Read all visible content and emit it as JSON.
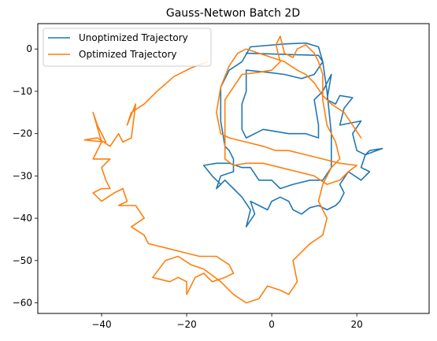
{
  "chart_data": {
    "type": "line",
    "title": "Gauss-Netwon Batch 2D",
    "xlabel": "",
    "ylabel": "",
    "xlim": [
      -55,
      37
    ],
    "ylim": [
      -62.5,
      6
    ],
    "xticks": [
      -40,
      -20,
      0,
      20
    ],
    "yticks": [
      0,
      -10,
      -20,
      -30,
      -40,
      -50,
      -60
    ],
    "xtick_labels": [
      "−40",
      "−20",
      "0",
      "20"
    ],
    "ytick_labels": [
      "0",
      "−10",
      "−20",
      "−30",
      "−40",
      "−50",
      "−60"
    ],
    "grid": false,
    "legend_position": "top-left",
    "series": [
      {
        "name": "Unoptimized Trajectory",
        "color": "#1f77b4",
        "points": [
          [
            -6,
            -1
          ],
          [
            11,
            -1.5
          ],
          [
            12,
            -3
          ],
          [
            10,
            -6
          ],
          [
            7,
            -7
          ],
          [
            3,
            -6
          ],
          [
            -1,
            -5.5
          ],
          [
            -6,
            -5
          ],
          [
            -6,
            -10
          ],
          [
            -7,
            -13
          ],
          [
            -7,
            -19
          ],
          [
            -6,
            -21
          ],
          [
            -2,
            -19
          ],
          [
            4,
            -20
          ],
          [
            8,
            -20
          ],
          [
            11,
            -21
          ],
          [
            11,
            -18
          ],
          [
            10,
            -12
          ],
          [
            12,
            -10
          ],
          [
            13,
            -8
          ],
          [
            14,
            -6
          ],
          [
            13,
            -12
          ],
          [
            15,
            -13
          ],
          [
            16,
            -11
          ],
          [
            19,
            -11.5
          ],
          [
            17,
            -14
          ],
          [
            16,
            -18
          ],
          [
            21,
            -17
          ],
          [
            19,
            -20
          ],
          [
            20,
            -24
          ],
          [
            22,
            -25
          ],
          [
            23,
            -24
          ],
          [
            26,
            -23.5
          ],
          [
            22,
            -25
          ],
          [
            21,
            -28
          ],
          [
            23,
            -29
          ],
          [
            21,
            -31
          ],
          [
            18,
            -29
          ],
          [
            16,
            -32
          ],
          [
            17,
            -34
          ],
          [
            16,
            -36
          ],
          [
            15,
            -37
          ],
          [
            13,
            -38
          ],
          [
            11,
            -37
          ],
          [
            9,
            -37.5
          ],
          [
            7,
            -39
          ],
          [
            5,
            -38
          ],
          [
            4,
            -36
          ],
          [
            2,
            -35
          ],
          [
            0,
            -36
          ],
          [
            -1,
            -38
          ],
          [
            -3,
            -37
          ],
          [
            -5,
            -36
          ],
          [
            -4,
            -39
          ],
          [
            -6,
            -42
          ],
          [
            -5,
            -38
          ],
          [
            -7,
            -35
          ],
          [
            -9,
            -33
          ],
          [
            -11,
            -31
          ],
          [
            -13,
            -33
          ],
          [
            -12,
            -30
          ],
          [
            -9,
            -29
          ],
          [
            -9,
            -26
          ],
          [
            -10,
            -24
          ],
          [
            -11,
            -23
          ],
          [
            -12,
            -17
          ],
          [
            -12,
            -9
          ],
          [
            -10,
            -5
          ],
          [
            -7,
            -3
          ],
          [
            -5,
            0.5
          ],
          [
            3,
            1.2
          ],
          [
            8,
            1.4
          ],
          [
            11,
            0.5
          ],
          [
            12,
            -3
          ],
          [
            13,
            -10
          ],
          [
            14,
            -20
          ],
          [
            14,
            -28
          ],
          [
            12,
            -31
          ],
          [
            9,
            -31
          ],
          [
            5,
            -32
          ],
          [
            2,
            -33
          ],
          [
            0,
            -31
          ],
          [
            -3,
            -31
          ],
          [
            -5,
            -28
          ],
          [
            -7,
            -28
          ],
          [
            -10,
            -27
          ],
          [
            -13,
            -27
          ],
          [
            -16,
            -27.5
          ],
          [
            -14,
            -30
          ],
          [
            -12,
            -32
          ]
        ]
      },
      {
        "name": "Optimized Trajectory",
        "color": "#ff7f0e",
        "points": [
          [
            -15,
            -3
          ],
          [
            -19,
            -4.5
          ],
          [
            -23,
            -6.5
          ],
          [
            -27,
            -10
          ],
          [
            -30,
            -13
          ],
          [
            -33,
            -15
          ],
          [
            -34,
            -18
          ],
          [
            -32,
            -13
          ],
          [
            -33,
            -21
          ],
          [
            -35,
            -22
          ],
          [
            -36,
            -20
          ],
          [
            -38,
            -23
          ],
          [
            -41,
            -21
          ],
          [
            -44,
            -21.5
          ],
          [
            -39,
            -22
          ],
          [
            -41,
            -18
          ],
          [
            -42,
            -15
          ],
          [
            -40,
            -22
          ],
          [
            -42,
            -26
          ],
          [
            -38,
            -26
          ],
          [
            -40,
            -28
          ],
          [
            -39,
            -31
          ],
          [
            -38,
            -33
          ],
          [
            -40,
            -33
          ],
          [
            -42,
            -34
          ],
          [
            -40,
            -36
          ],
          [
            -37,
            -34
          ],
          [
            -35,
            -33
          ],
          [
            -34,
            -36
          ],
          [
            -36,
            -37
          ],
          [
            -32,
            -37
          ],
          [
            -30,
            -40
          ],
          [
            -33,
            -42
          ],
          [
            -30,
            -44
          ],
          [
            -29,
            -46
          ],
          [
            -25,
            -47
          ],
          [
            -21,
            -48
          ],
          [
            -17,
            -49
          ],
          [
            -13,
            -49
          ],
          [
            -10,
            -51
          ],
          [
            -9,
            -53
          ],
          [
            -11,
            -54
          ],
          [
            -14,
            -55
          ],
          [
            -16,
            -53
          ],
          [
            -18,
            -54
          ],
          [
            -19,
            -56
          ],
          [
            -20,
            -58
          ],
          [
            -20,
            -55
          ],
          [
            -22,
            -54
          ],
          [
            -24,
            -55
          ],
          [
            -28,
            -54
          ],
          [
            -25,
            -50
          ],
          [
            -22,
            -49
          ],
          [
            -19,
            -51
          ],
          [
            -16,
            -52
          ],
          [
            -12,
            -55
          ],
          [
            -9,
            -58
          ],
          [
            -6,
            -60
          ],
          [
            -3,
            -59
          ],
          [
            -1,
            -56
          ],
          [
            2,
            -57
          ],
          [
            4,
            -58
          ],
          [
            6,
            -55
          ],
          [
            5,
            -50
          ],
          [
            7,
            -48
          ],
          [
            9,
            -46
          ],
          [
            12,
            -44
          ],
          [
            13,
            -40
          ],
          [
            11,
            -36
          ],
          [
            12,
            -32
          ],
          [
            14,
            -28
          ],
          [
            16,
            -26
          ],
          [
            15,
            -22
          ],
          [
            13,
            -18
          ],
          [
            12,
            -12
          ],
          [
            12,
            -6
          ],
          [
            11,
            -3
          ],
          [
            10,
            -1
          ],
          [
            8,
            1
          ],
          [
            6,
            0
          ],
          [
            5,
            -2
          ],
          [
            3,
            -1
          ],
          [
            2,
            3
          ],
          [
            1,
            1
          ],
          [
            2,
            -3
          ],
          [
            0,
            -5
          ],
          [
            -3,
            -5.5
          ],
          [
            -7,
            -6
          ],
          [
            -9,
            -9
          ],
          [
            -11,
            -12
          ],
          [
            -11,
            -17
          ],
          [
            -11,
            -22
          ],
          [
            -11,
            -26
          ],
          [
            -9,
            -27.5
          ],
          [
            -6,
            -27
          ],
          [
            -2,
            -27
          ],
          [
            2,
            -28
          ],
          [
            6,
            -29
          ],
          [
            10,
            -30
          ],
          [
            13,
            -32
          ],
          [
            16,
            -31
          ],
          [
            18,
            -29
          ],
          [
            20,
            -27.5
          ],
          [
            16,
            -27
          ],
          [
            12,
            -26
          ],
          [
            8,
            -25
          ],
          [
            4,
            -24
          ],
          [
            1,
            -24
          ],
          [
            -2,
            -23
          ],
          [
            -6,
            -22
          ],
          [
            -10,
            -21
          ],
          [
            -12,
            -20
          ],
          [
            -13,
            -15
          ],
          [
            -12,
            -9
          ],
          [
            -10,
            -4
          ],
          [
            -8,
            -1
          ],
          [
            -6,
            0
          ],
          [
            -3,
            -1
          ],
          [
            0,
            -2
          ],
          [
            3,
            -3
          ],
          [
            6,
            -5
          ],
          [
            8,
            -6
          ],
          [
            10,
            -8
          ],
          [
            12,
            -11
          ],
          [
            14,
            -13
          ],
          [
            17,
            -15
          ],
          [
            19,
            -18
          ],
          [
            21,
            -21
          ]
        ]
      }
    ]
  }
}
